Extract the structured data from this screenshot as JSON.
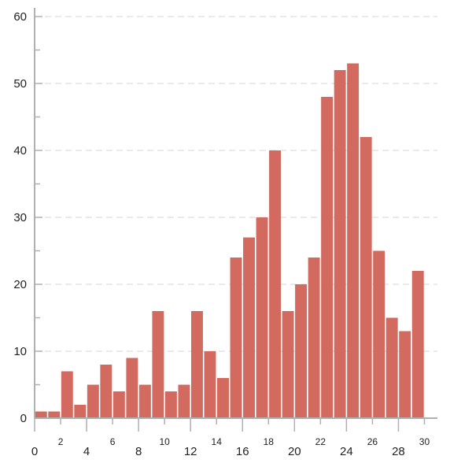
{
  "chart_data": {
    "type": "bar",
    "title": "",
    "xlabel": "",
    "ylabel": "",
    "x": [
      1,
      2,
      3,
      4,
      5,
      6,
      7,
      8,
      9,
      10,
      11,
      12,
      13,
      14,
      15,
      16,
      17,
      18,
      19,
      20,
      21,
      22,
      23,
      24,
      25,
      26,
      27,
      28,
      29,
      30,
      31
    ],
    "values": [
      1,
      1,
      7,
      2,
      5,
      8,
      4,
      9,
      5,
      16,
      4,
      5,
      16,
      10,
      6,
      24,
      27,
      30,
      40,
      16,
      20,
      24,
      48,
      52,
      53,
      42,
      25,
      15,
      13,
      22,
      0
    ],
    "xlim": [
      0,
      31
    ],
    "ylim": [
      0,
      60
    ],
    "y_ticks": [
      "0",
      "10",
      "20",
      "30",
      "40",
      "50",
      "60"
    ],
    "x_ticks_major": [
      "0",
      "4",
      "8",
      "12",
      "16",
      "20",
      "24",
      "28"
    ],
    "x_ticks_minor": [
      "2",
      "6",
      "10",
      "14",
      "18",
      "22",
      "26",
      "30"
    ],
    "grid": "horizontal dashed",
    "bar_color": "#d26a5f",
    "axis_color": "#b0b0b0",
    "grid_color": "#d4d4d4"
  }
}
